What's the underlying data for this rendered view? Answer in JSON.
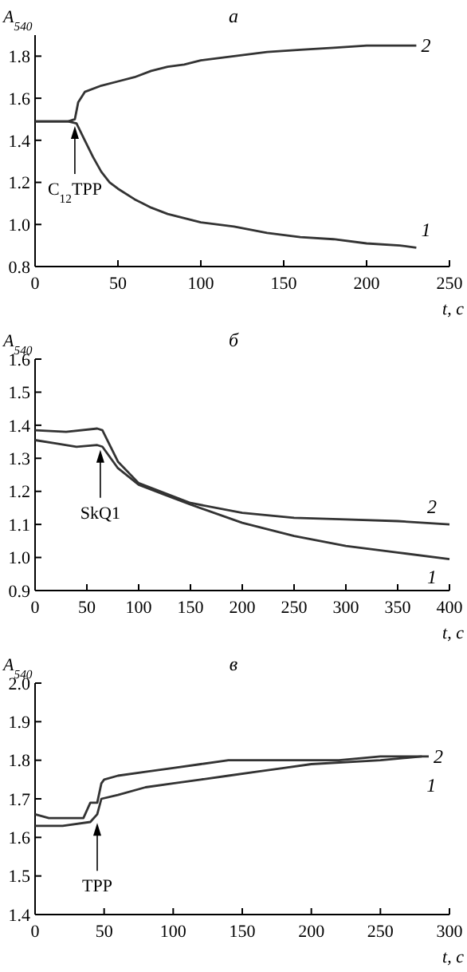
{
  "chart_data": [
    {
      "type": "line",
      "title": "а",
      "xlabel": "t, с",
      "ylabel": "A$_{540}$",
      "xlim": [
        0,
        250
      ],
      "xticks": [
        0,
        50,
        100,
        150,
        200,
        250
      ],
      "ylim": [
        0.8,
        1.9
      ],
      "yticks": [
        {
          "value": 0.8,
          "label": "0.8"
        },
        {
          "value": 1.0,
          "label": "1.0"
        },
        {
          "value": 1.2,
          "label": "1.2"
        },
        {
          "value": 1.4,
          "label": "1.4"
        },
        {
          "value": 1.6,
          "label": "1.6"
        },
        {
          "value": 1.8,
          "label": "1.8"
        }
      ],
      "grid": false,
      "marker": "none",
      "line_style": "solid",
      "series": [
        {
          "name": "1",
          "color": "#333333",
          "x": [
            0,
            10,
            20,
            25,
            30,
            35,
            40,
            45,
            50,
            60,
            70,
            80,
            90,
            100,
            120,
            140,
            160,
            180,
            200,
            220,
            230
          ],
          "values": [
            1.49,
            1.49,
            1.49,
            1.48,
            1.4,
            1.32,
            1.25,
            1.2,
            1.17,
            1.12,
            1.08,
            1.05,
            1.03,
            1.01,
            0.99,
            0.96,
            0.94,
            0.93,
            0.91,
            0.9,
            0.89
          ]
        },
        {
          "name": "2",
          "color": "#333333",
          "x": [
            0,
            10,
            20,
            24,
            26,
            30,
            40,
            50,
            60,
            70,
            80,
            90,
            100,
            120,
            140,
            160,
            180,
            200,
            220,
            230
          ],
          "values": [
            1.49,
            1.49,
            1.49,
            1.5,
            1.58,
            1.63,
            1.66,
            1.68,
            1.7,
            1.73,
            1.75,
            1.76,
            1.78,
            1.8,
            1.82,
            1.83,
            1.84,
            1.85,
            1.85,
            1.85
          ]
        }
      ],
      "annotations": [
        {
          "text": "C$_{12}$TPP",
          "x": 24,
          "y": 1.49
        }
      ]
    },
    {
      "type": "line",
      "title": "б",
      "xlabel": "t, с",
      "ylabel": "A$_{540}$",
      "xlim": [
        0,
        400
      ],
      "xticks": [
        0,
        50,
        100,
        150,
        200,
        250,
        300,
        350,
        400
      ],
      "ylim": [
        0.9,
        1.6
      ],
      "yticks": [
        {
          "value": 0.9,
          "label": "0.9"
        },
        {
          "value": 1.0,
          "label": "1.0"
        },
        {
          "value": 1.1,
          "label": "1.1"
        },
        {
          "value": 1.2,
          "label": "1.2"
        },
        {
          "value": 1.3,
          "label": "1.3"
        },
        {
          "value": 1.4,
          "label": "1.4"
        },
        {
          "value": 1.5,
          "label": "1.5"
        },
        {
          "value": 1.6,
          "label": "1.6"
        }
      ],
      "grid": false,
      "marker": "none",
      "line_style": "solid",
      "series": [
        {
          "name": "1",
          "color": "#333333",
          "x": [
            0,
            20,
            40,
            60,
            65,
            80,
            100,
            125,
            150,
            200,
            250,
            300,
            350,
            400
          ],
          "values": [
            1.355,
            1.345,
            1.335,
            1.34,
            1.335,
            1.27,
            1.22,
            1.19,
            1.16,
            1.105,
            1.065,
            1.035,
            1.015,
            0.995
          ]
        },
        {
          "name": "2",
          "color": "#333333",
          "x": [
            0,
            30,
            60,
            65,
            80,
            100,
            125,
            150,
            200,
            250,
            300,
            350,
            400
          ],
          "values": [
            1.385,
            1.38,
            1.39,
            1.385,
            1.29,
            1.225,
            1.195,
            1.165,
            1.135,
            1.12,
            1.115,
            1.11,
            1.1
          ]
        }
      ],
      "annotations": [
        {
          "text": "SkQ1",
          "x": 63,
          "y": 1.34
        }
      ]
    },
    {
      "type": "line",
      "title": "в",
      "xlabel": "t, с",
      "ylabel": "A$_{540}$",
      "xlim": [
        0,
        300
      ],
      "xticks": [
        0,
        50,
        100,
        150,
        200,
        250,
        300
      ],
      "ylim": [
        1.4,
        2.0
      ],
      "yticks": [
        {
          "value": 1.4,
          "label": "1.4"
        },
        {
          "value": 1.5,
          "label": "1.5"
        },
        {
          "value": 1.6,
          "label": "1.6"
        },
        {
          "value": 1.7,
          "label": "1.7"
        },
        {
          "value": 1.8,
          "label": "1.8"
        },
        {
          "value": 1.9,
          "label": "1.9"
        },
        {
          "value": 2.0,
          "label": "2.0"
        }
      ],
      "grid": false,
      "marker": "none",
      "line_style": "solid",
      "series": [
        {
          "name": "1",
          "color": "#333333",
          "x": [
            0,
            20,
            40,
            45,
            48,
            60,
            80,
            100,
            120,
            140,
            160,
            180,
            200,
            250,
            280
          ],
          "values": [
            1.63,
            1.63,
            1.64,
            1.66,
            1.7,
            1.71,
            1.73,
            1.74,
            1.75,
            1.76,
            1.77,
            1.78,
            1.79,
            1.8,
            1.81
          ]
        },
        {
          "name": "2",
          "color": "#333333",
          "x": [
            0,
            10,
            20,
            35,
            40,
            45,
            48,
            50,
            60,
            80,
            100,
            120,
            140,
            160,
            180,
            200,
            220,
            250,
            285
          ],
          "values": [
            1.66,
            1.65,
            1.65,
            1.65,
            1.69,
            1.69,
            1.74,
            1.75,
            1.76,
            1.77,
            1.78,
            1.79,
            1.8,
            1.8,
            1.8,
            1.8,
            1.8,
            1.81,
            1.81
          ]
        }
      ],
      "annotations": [
        {
          "text": "TPP",
          "x": 45,
          "y": 1.65
        }
      ]
    }
  ]
}
